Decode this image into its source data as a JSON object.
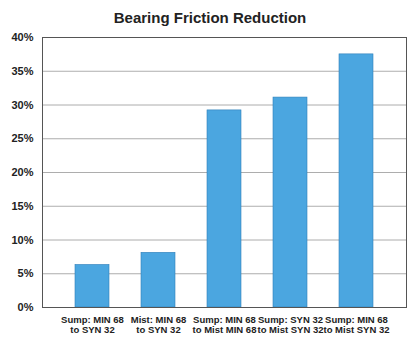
{
  "chart_data": {
    "type": "bar",
    "title": "Bearing Friction Reduction",
    "categories": [
      "Sump: MIN 68\nto SYN 32",
      "Mist: MIN 68\nto SYN 32",
      "Sump: MIN 68\nto Mist MIN 68",
      "Sump: SYN 32\nto Mist SYN 32",
      "Sump: MIN 68\nto Mist SYN 32"
    ],
    "values": [
      6.3,
      8.1,
      29.2,
      31.1,
      37.5
    ],
    "color": "#4ba6e0",
    "ylim": [
      0,
      40
    ],
    "yticks": [
      {
        "value": 0,
        "label": "0%"
      },
      {
        "value": 5,
        "label": "5%"
      },
      {
        "value": 10,
        "label": "10%"
      },
      {
        "value": 15,
        "label": "15%"
      },
      {
        "value": 20,
        "label": "20%"
      },
      {
        "value": 25,
        "label": "25%"
      },
      {
        "value": 30,
        "label": "30%"
      },
      {
        "value": 35,
        "label": "35%"
      },
      {
        "value": 40,
        "label": "40%"
      }
    ],
    "grid": true
  }
}
